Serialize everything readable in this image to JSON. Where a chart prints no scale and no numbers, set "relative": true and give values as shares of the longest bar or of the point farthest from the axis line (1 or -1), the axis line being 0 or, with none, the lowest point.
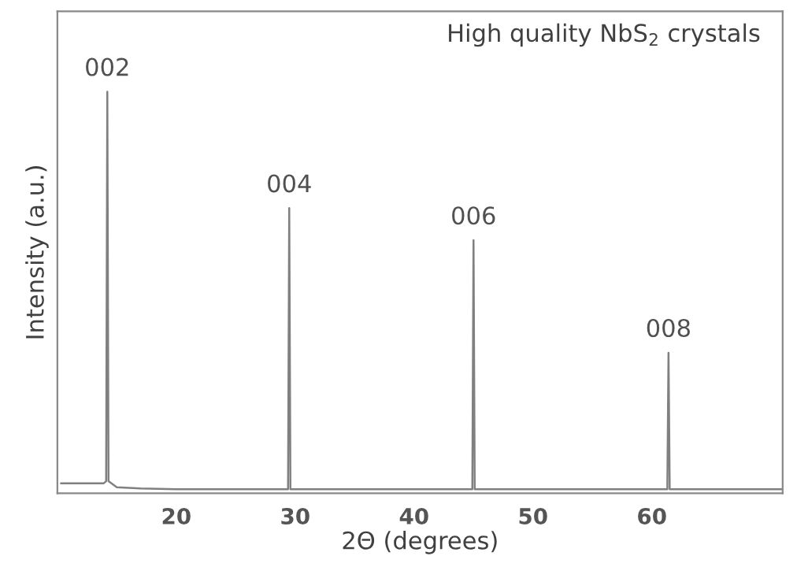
{
  "chart_data": {
    "type": "line",
    "title": "High quality NbS$_{2}$ crystals",
    "xlabel": "2Θ (degrees)",
    "ylabel": "Intensity (a.u.)",
    "relative": true,
    "xlim": [
      10,
      71
    ],
    "xticks": [
      20,
      30,
      40,
      50,
      60
    ],
    "grid": false,
    "legend": false,
    "marker": "none",
    "line_style": "solid",
    "series": [
      {
        "color": "#808080",
        "x": [
          10.3,
          12.0,
          13.9,
          14.1,
          14.2,
          14.3,
          15.0,
          17.0,
          20.0,
          25.0,
          29.4,
          29.5,
          29.6,
          35.0,
          40.0,
          44.9,
          45.0,
          45.1,
          50.0,
          55.0,
          61.3,
          61.4,
          61.5,
          66.0,
          70.9
        ],
        "values": [
          0.025,
          0.025,
          0.025,
          0.03,
          1.0,
          0.03,
          0.015,
          0.012,
          0.01,
          0.01,
          0.01,
          0.71,
          0.01,
          0.01,
          0.01,
          0.01,
          0.63,
          0.01,
          0.01,
          0.01,
          0.01,
          0.35,
          0.01,
          0.01,
          0.01
        ]
      }
    ],
    "annotations": [
      {
        "text": "002",
        "x": 14.2,
        "y": 1.0
      },
      {
        "text": "004",
        "x": 29.5,
        "y": 0.71
      },
      {
        "text": "006",
        "x": 45.0,
        "y": 0.63
      },
      {
        "text": "008",
        "x": 61.4,
        "y": 0.35
      }
    ]
  }
}
